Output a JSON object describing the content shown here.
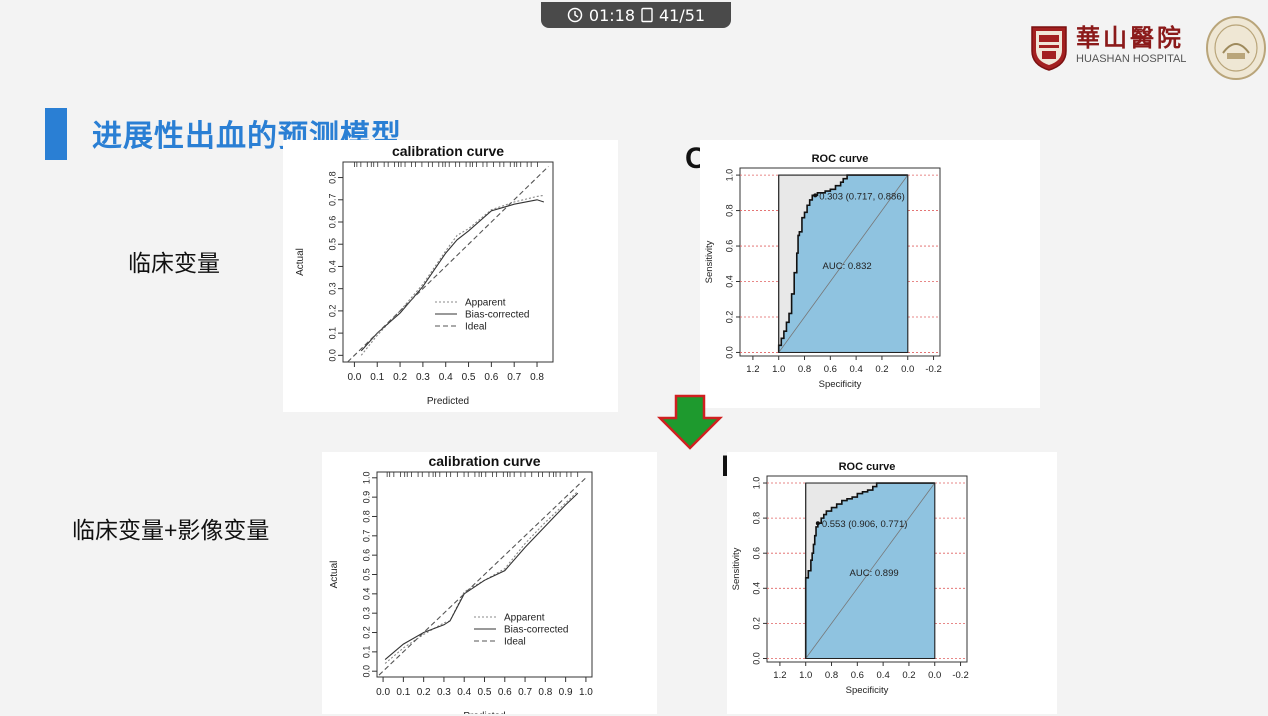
{
  "player": {
    "time": "01:18",
    "page": "41/51",
    "icons": [
      "clock-icon",
      "page-icon"
    ]
  },
  "header": {
    "logo_cn": "華山醫院",
    "logo_en": "HUASHAN HOSPITAL"
  },
  "slide": {
    "title": "进展性出血的预测模型",
    "label_top": "临床变量",
    "label_bottom": "临床变量+影像变量",
    "letter_c": "C",
    "letter_f": "F",
    "accent_color": "#2a7fd4",
    "arrow_colors": {
      "fill": "#1e9a2e",
      "outline": "#d02020"
    }
  },
  "chart_data": [
    {
      "type": "line",
      "title": "calibration curve",
      "xlabel": "Predicted",
      "ylabel": "Actual",
      "xlim": [
        -0.05,
        0.87
      ],
      "ylim": [
        -0.03,
        0.87
      ],
      "xticks": [
        "0.0",
        "0.1",
        "0.2",
        "0.3",
        "0.4",
        "0.5",
        "0.6",
        "0.7",
        "0.8"
      ],
      "yticks": [
        "0.0",
        "0.1",
        "0.2",
        "0.3",
        "0.4",
        "0.5",
        "0.6",
        "0.7",
        "0.8"
      ],
      "legend": [
        "Apparent",
        "Bias-corrected",
        "Ideal"
      ],
      "legend_position": "bottom-right",
      "series": [
        {
          "name": "Apparent",
          "style": "dotted",
          "x": [
            0.03,
            0.1,
            0.2,
            0.3,
            0.4,
            0.45,
            0.5,
            0.6,
            0.7,
            0.8,
            0.83
          ],
          "y": [
            0.0,
            0.09,
            0.2,
            0.32,
            0.47,
            0.54,
            0.57,
            0.655,
            0.69,
            0.715,
            0.72
          ]
        },
        {
          "name": "Bias-corrected",
          "style": "solid",
          "x": [
            0.03,
            0.1,
            0.2,
            0.3,
            0.4,
            0.45,
            0.5,
            0.6,
            0.7,
            0.8,
            0.83
          ],
          "y": [
            0.02,
            0.1,
            0.19,
            0.31,
            0.46,
            0.52,
            0.56,
            0.65,
            0.68,
            0.7,
            0.69
          ]
        },
        {
          "name": "Ideal",
          "style": "dashed",
          "x": [
            -0.03,
            0.85
          ],
          "y": [
            -0.03,
            0.85
          ]
        }
      ]
    },
    {
      "type": "line",
      "title": "ROC curve",
      "xlabel": "Specificity",
      "ylabel": "Sensitivity",
      "xlim": [
        1.3,
        -0.25
      ],
      "ylim": [
        -0.02,
        1.04
      ],
      "xticks": [
        "1.2",
        "1.0",
        "0.8",
        "0.6",
        "0.4",
        "0.2",
        "0.0",
        "-0.2"
      ],
      "yticks": [
        "0.0",
        "0.2",
        "0.4",
        "0.6",
        "0.8",
        "1.0"
      ],
      "annotation": "0.303 (0.717, 0.886)",
      "auc_label": "AUC: 0.832",
      "threshold_point": [
        0.717,
        0.886
      ],
      "series": [
        {
          "name": "",
          "step": true,
          "x": [
            1.0,
            1.0,
            0.98,
            0.96,
            0.94,
            0.92,
            0.9,
            0.88,
            0.86,
            0.85,
            0.84,
            0.82,
            0.8,
            0.78,
            0.76,
            0.74,
            0.72,
            0.7,
            0.64,
            0.6,
            0.56,
            0.52,
            0.5,
            0.47,
            0.45,
            0.0
          ],
          "y": [
            0.0,
            0.04,
            0.08,
            0.12,
            0.17,
            0.22,
            0.33,
            0.45,
            0.56,
            0.66,
            0.68,
            0.76,
            0.79,
            0.83,
            0.86,
            0.886,
            0.886,
            0.9,
            0.91,
            0.92,
            0.94,
            0.96,
            0.98,
            1.0,
            1.0,
            1.0
          ]
        }
      ]
    },
    {
      "type": "line",
      "title": "calibration curve",
      "xlabel": "Predicted",
      "ylabel": "Actual",
      "xlim": [
        -0.03,
        1.03
      ],
      "ylim": [
        -0.03,
        1.03
      ],
      "xticks": [
        "0.0",
        "0.1",
        "0.2",
        "0.3",
        "0.4",
        "0.5",
        "0.6",
        "0.7",
        "0.8",
        "0.9",
        "1.0"
      ],
      "yticks": [
        "0.0",
        "0.1",
        "0.2",
        "0.3",
        "0.4",
        "0.5",
        "0.6",
        "0.7",
        "0.8",
        "0.9",
        "1.0"
      ],
      "legend": [
        "Apparent",
        "Bias-corrected",
        "Ideal"
      ],
      "legend_position": "bottom-right",
      "series": [
        {
          "name": "Apparent",
          "style": "dotted",
          "x": [
            0.01,
            0.1,
            0.2,
            0.3,
            0.33,
            0.4,
            0.5,
            0.6,
            0.7,
            0.8,
            0.9,
            0.96
          ],
          "y": [
            0.04,
            0.12,
            0.19,
            0.25,
            0.26,
            0.41,
            0.47,
            0.53,
            0.66,
            0.77,
            0.87,
            0.93
          ]
        },
        {
          "name": "Bias-corrected",
          "style": "solid",
          "x": [
            0.01,
            0.1,
            0.2,
            0.3,
            0.33,
            0.4,
            0.5,
            0.6,
            0.7,
            0.8,
            0.9,
            0.96
          ],
          "y": [
            0.06,
            0.14,
            0.2,
            0.24,
            0.26,
            0.4,
            0.47,
            0.52,
            0.64,
            0.75,
            0.86,
            0.92
          ]
        },
        {
          "name": "Ideal",
          "style": "dashed",
          "x": [
            -0.02,
            1.0
          ],
          "y": [
            -0.02,
            1.0
          ]
        }
      ]
    },
    {
      "type": "line",
      "title": "ROC curve",
      "xlabel": "Specificity",
      "ylabel": "Sensitivity",
      "xlim": [
        1.3,
        -0.25
      ],
      "ylim": [
        -0.02,
        1.04
      ],
      "xticks": [
        "1.2",
        "1.0",
        "0.8",
        "0.6",
        "0.4",
        "0.2",
        "0.0",
        "-0.2"
      ],
      "yticks": [
        "0.0",
        "0.2",
        "0.4",
        "0.6",
        "0.8",
        "1.0"
      ],
      "annotation": "0.553 (0.906, 0.771)",
      "auc_label": "AUC: 0.899",
      "threshold_point": [
        0.906,
        0.771
      ],
      "series": [
        {
          "name": "",
          "step": true,
          "x": [
            1.0,
            1.0,
            0.98,
            0.96,
            0.95,
            0.94,
            0.93,
            0.92,
            0.906,
            0.88,
            0.86,
            0.84,
            0.8,
            0.76,
            0.72,
            0.68,
            0.64,
            0.6,
            0.56,
            0.52,
            0.48,
            0.45,
            0.0
          ],
          "y": [
            0.0,
            0.46,
            0.5,
            0.56,
            0.6,
            0.65,
            0.7,
            0.75,
            0.771,
            0.8,
            0.82,
            0.84,
            0.86,
            0.88,
            0.9,
            0.91,
            0.92,
            0.94,
            0.95,
            0.96,
            0.98,
            1.0,
            1.0
          ]
        }
      ]
    }
  ]
}
